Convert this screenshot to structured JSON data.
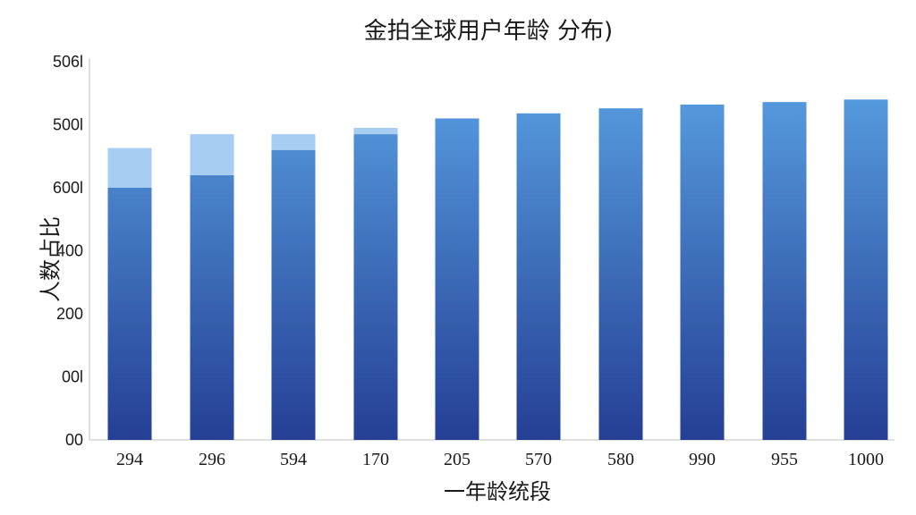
{
  "chart_data": {
    "type": "bar",
    "title": "金拍全球用户年龄 分布)",
    "xlabel": "一年龄统段",
    "ylabel": "人数占比",
    "categories": [
      "294",
      "296",
      "594",
      "170",
      "205",
      "570",
      "580",
      "990",
      "955",
      "1000"
    ],
    "series": [
      {
        "values": [
          400,
          420,
          460,
          485,
          510,
          518,
          526,
          532,
          536,
          540
        ]
      },
      {
        "values": [
          63,
          65,
          25,
          10,
          0,
          0,
          0,
          0,
          0,
          0
        ]
      }
    ],
    "y_tick_labels": [
      "00",
      "00l",
      "200",
      "400",
      "600l",
      "500l",
      "506l"
    ],
    "ylim": [
      0,
      600
    ],
    "grid": false,
    "colors": {
      "main_top": "#5aa3e6",
      "main_bottom": "#253f94",
      "overlay": "#a7cdf2",
      "axis": "#bfbfbf"
    }
  }
}
